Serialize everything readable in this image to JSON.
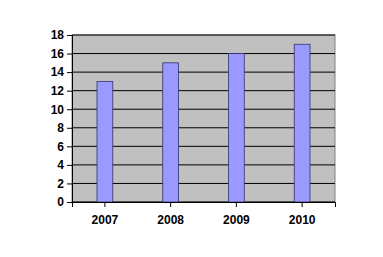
{
  "chart_data": {
    "type": "bar",
    "categories": [
      "2007",
      "2008",
      "2009",
      "2010"
    ],
    "values": [
      13,
      15,
      16,
      17
    ],
    "color": "#9999ff",
    "ylim": [
      0,
      18
    ],
    "yticks": [
      0,
      2,
      4,
      6,
      8,
      10,
      12,
      14,
      16,
      18
    ],
    "grid": true
  }
}
